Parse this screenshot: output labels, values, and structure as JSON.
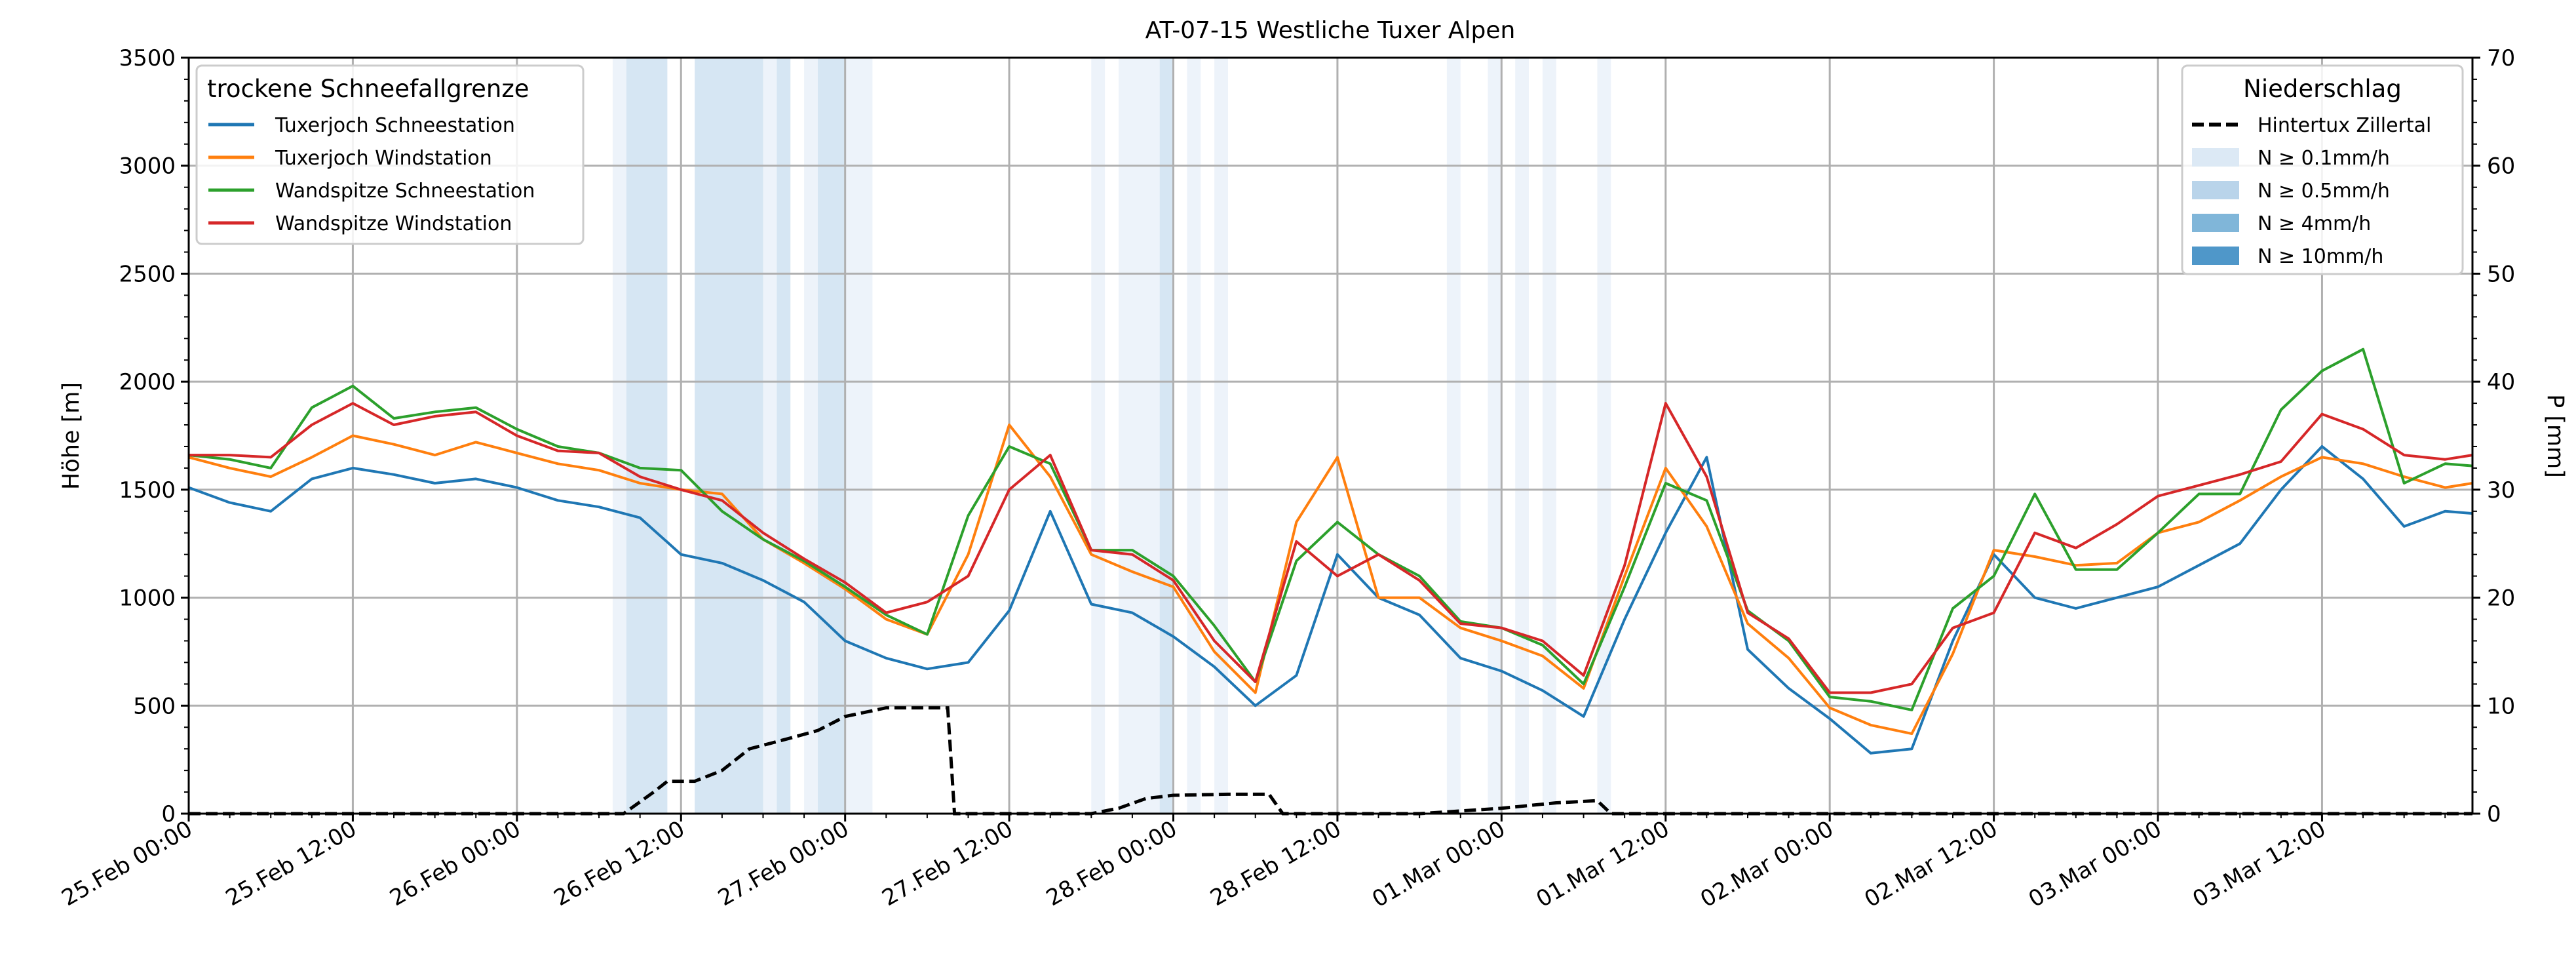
{
  "chart_data": {
    "type": "line",
    "title": "AT-07-15 Westliche Tuxer Alpen",
    "ylabel": "Höhe [m]",
    "y2label": "P [mm]",
    "ylim": [
      0,
      3500
    ],
    "y2lim": [
      0,
      70
    ],
    "xlim_hours": [
      0,
      167
    ],
    "grid": true,
    "yticks": [
      "0",
      "500",
      "1000",
      "1500",
      "2000",
      "2500",
      "3000",
      "3500"
    ],
    "y2ticks": [
      "0",
      "10",
      "20",
      "30",
      "40",
      "50",
      "60",
      "70"
    ],
    "xticks": [
      {
        "h": 0,
        "label": "25.Feb 00:00"
      },
      {
        "h": 12,
        "label": "25.Feb 12:00"
      },
      {
        "h": 24,
        "label": "26.Feb 00:00"
      },
      {
        "h": 36,
        "label": "26.Feb 12:00"
      },
      {
        "h": 48,
        "label": "27.Feb 00:00"
      },
      {
        "h": 60,
        "label": "27.Feb 12:00"
      },
      {
        "h": 72,
        "label": "28.Feb 00:00"
      },
      {
        "h": 84,
        "label": "28.Feb 12:00"
      },
      {
        "h": 96,
        "label": "01.Mar 00:00"
      },
      {
        "h": 108,
        "label": "01.Mar 12:00"
      },
      {
        "h": 120,
        "label": "02.Mar 00:00"
      },
      {
        "h": 132,
        "label": "02.Mar 12:00"
      },
      {
        "h": 144,
        "label": "03.Mar 00:00"
      },
      {
        "h": 156,
        "label": "03.Mar 12:00"
      }
    ],
    "legend_left": {
      "title": "trockene Schneefallgrenze",
      "placement": "top-left"
    },
    "legend_right": {
      "title": "Niederschlag",
      "placement": "top-right",
      "items": [
        {
          "label": "Hintertux Zillertal",
          "kind": "dashed",
          "color": "#000000"
        },
        {
          "label": "N ≥ 0.1mm/h",
          "kind": "patch",
          "color": "#dce9f5"
        },
        {
          "label": "N ≥ 0.5mm/h",
          "kind": "patch",
          "color": "#b9d4ea"
        },
        {
          "label": "N ≥ 4mm/h",
          "kind": "patch",
          "color": "#80b6d9"
        },
        {
          "label": "N ≥ 10mm/h",
          "kind": "patch",
          "color": "#4f97c9"
        }
      ]
    },
    "hours": [
      0,
      3,
      6,
      9,
      12,
      15,
      18,
      21,
      24,
      27,
      30,
      33,
      36,
      39,
      42,
      45,
      48,
      51,
      54,
      57,
      60,
      63,
      66,
      69,
      72,
      75,
      78,
      81,
      84,
      87,
      90,
      93,
      96,
      99,
      102,
      105,
      108,
      111,
      114,
      117,
      120,
      123,
      126,
      129,
      132,
      135,
      138,
      141,
      144,
      147,
      150,
      153,
      156,
      159,
      162,
      165,
      167
    ],
    "series": [
      {
        "name": "Tuxerjoch Schneestation",
        "color": "#1f77b4",
        "values": [
          1510,
          1440,
          1400,
          1550,
          1600,
          1570,
          1530,
          1550,
          1510,
          1450,
          1420,
          1370,
          1200,
          1160,
          1080,
          980,
          800,
          720,
          670,
          700,
          940,
          1400,
          970,
          930,
          820,
          680,
          500,
          640,
          1200,
          1000,
          920,
          720,
          660,
          570,
          450,
          900,
          1300,
          1650,
          760,
          580,
          440,
          280,
          300,
          800,
          1200,
          1000,
          950,
          1000,
          1050,
          1150,
          1250,
          1500,
          1700,
          1550,
          1330,
          1400,
          1390
        ]
      },
      {
        "name": "Tuxerjoch Windstation",
        "color": "#ff7f0e",
        "values": [
          1650,
          1600,
          1560,
          1650,
          1750,
          1710,
          1660,
          1720,
          1670,
          1620,
          1590,
          1530,
          1500,
          1480,
          1270,
          1160,
          1040,
          900,
          830,
          1200,
          1800,
          1560,
          1200,
          1120,
          1050,
          750,
          560,
          1350,
          1650,
          1000,
          1000,
          860,
          800,
          730,
          580,
          1100,
          1600,
          1330,
          880,
          720,
          490,
          410,
          370,
          740,
          1220,
          1190,
          1150,
          1160,
          1300,
          1350,
          1450,
          1560,
          1650,
          1620,
          1560,
          1510,
          1530
        ]
      },
      {
        "name": "Wandspitze Schneestation",
        "color": "#2ca02c",
        "values": [
          1660,
          1640,
          1600,
          1880,
          1980,
          1830,
          1860,
          1880,
          1780,
          1700,
          1670,
          1600,
          1590,
          1400,
          1270,
          1170,
          1050,
          920,
          830,
          1380,
          1700,
          1620,
          1220,
          1220,
          1100,
          870,
          610,
          1170,
          1350,
          1200,
          1100,
          890,
          860,
          780,
          600,
          1050,
          1530,
          1450,
          940,
          800,
          540,
          520,
          480,
          950,
          1100,
          1480,
          1130,
          1130,
          1300,
          1480,
          1480,
          1870,
          2050,
          2150,
          1530,
          1620,
          1610
        ]
      },
      {
        "name": "Wandspitze Windstation",
        "color": "#d62728",
        "values": [
          1660,
          1660,
          1650,
          1800,
          1900,
          1800,
          1840,
          1860,
          1750,
          1680,
          1670,
          1560,
          1500,
          1450,
          1300,
          1180,
          1070,
          930,
          980,
          1100,
          1500,
          1660,
          1220,
          1200,
          1080,
          800,
          610,
          1260,
          1100,
          1200,
          1080,
          880,
          860,
          800,
          640,
          1150,
          1900,
          1560,
          930,
          810,
          560,
          560,
          600,
          860,
          930,
          1300,
          1230,
          1340,
          1470,
          1520,
          1570,
          1630,
          1850,
          1780,
          1660,
          1640,
          1660
        ]
      }
    ],
    "precip_line": {
      "name": "Hintertux Zillertal",
      "points": [
        [
          0,
          0
        ],
        [
          31.8,
          0
        ],
        [
          34,
          2
        ],
        [
          35,
          3
        ],
        [
          37,
          3
        ],
        [
          39,
          4
        ],
        [
          41,
          6
        ],
        [
          44,
          7
        ],
        [
          46,
          7.7
        ],
        [
          48,
          9
        ],
        [
          51,
          9.8
        ],
        [
          54,
          9.8
        ],
        [
          55.5,
          9.8
        ],
        [
          56,
          0
        ],
        [
          66,
          0
        ],
        [
          68,
          0.5
        ],
        [
          70,
          1.4
        ],
        [
          72,
          1.7
        ],
        [
          76,
          1.8
        ],
        [
          79,
          1.8
        ],
        [
          80,
          0
        ],
        [
          90,
          0
        ],
        [
          96,
          0.5
        ],
        [
          100,
          1
        ],
        [
          103,
          1.2
        ],
        [
          104,
          0
        ],
        [
          167,
          0
        ]
      ]
    },
    "precip_bands": [
      {
        "from": 31,
        "to": 32,
        "level": 1
      },
      {
        "from": 32,
        "to": 35,
        "level": 2
      },
      {
        "from": 37,
        "to": 42,
        "level": 2
      },
      {
        "from": 42,
        "to": 43,
        "level": 1
      },
      {
        "from": 43,
        "to": 44,
        "level": 2
      },
      {
        "from": 45,
        "to": 46,
        "level": 1
      },
      {
        "from": 46,
        "to": 48,
        "level": 2
      },
      {
        "from": 48,
        "to": 50,
        "level": 1
      },
      {
        "from": 66,
        "to": 67,
        "level": 1
      },
      {
        "from": 68,
        "to": 71,
        "level": 1
      },
      {
        "from": 71,
        "to": 72,
        "level": 2
      },
      {
        "from": 73,
        "to": 74,
        "level": 1
      },
      {
        "from": 75,
        "to": 76,
        "level": 1
      },
      {
        "from": 92,
        "to": 93,
        "level": 1
      },
      {
        "from": 95,
        "to": 96,
        "level": 1
      },
      {
        "from": 97,
        "to": 98,
        "level": 1
      },
      {
        "from": 99,
        "to": 100,
        "level": 1
      },
      {
        "from": 103,
        "to": 104,
        "level": 1
      }
    ]
  }
}
